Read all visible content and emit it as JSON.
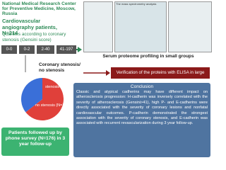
{
  "header": {
    "institution": "National Medical Research Center for Preventive Medicine, Moscow, Russia",
    "patients": "Cardiovascular angiography patients, N=214",
    "quartiles_title": "Quartiles according to coronary stenosis (Gensini score)",
    "quartiles": [
      "0-0",
      "0-2",
      "2-40",
      "41-197"
    ]
  },
  "stenosis_title": "Coronary stenosis/ no stenosis",
  "pie": {
    "labels": [
      "stenosis (N=138)",
      "no stenosis (N=76)"
    ],
    "values": [
      138,
      76
    ],
    "colors": [
      "#e0403a",
      "#3a6fd8"
    ]
  },
  "follow_up": "Patients followed up by phone survey (N=176) in 3 year follow-up",
  "proteomics": {
    "thumb_title": "The mass spectrometry analysis",
    "caption": "Serum proteome profiling in small groups"
  },
  "verification": "Verification of the proteins with ELISA in large groups",
  "conclusion": {
    "title": "Conclusion",
    "text": "Classic and atypical cadherins may have different impact on atherosclerosis progression: H-cadherin was inversely correlated with the severity of atherosclerosis (Gensini>41), high P- and E-cadherins were directly associated with the severity of coronary lesions and nonfatal cardiovascular outcomes. P-cadherin demonstrated the strongest association with the severity of coronary stenosis, and E-cadherin was associated with recurrent revascularization during 3 year follow-up."
  }
}
